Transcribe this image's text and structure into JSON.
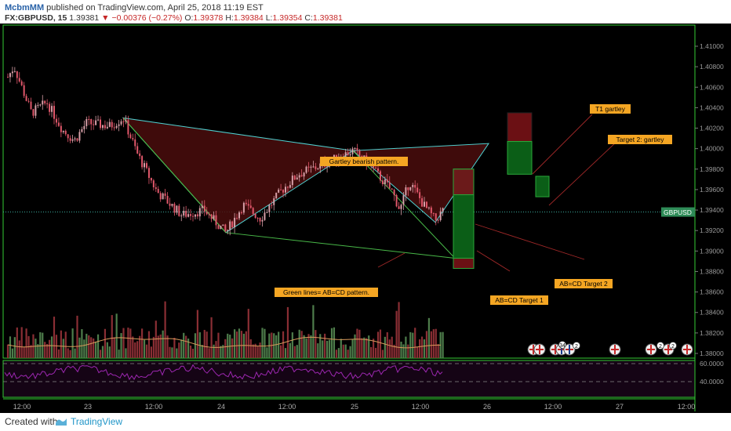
{
  "header": {
    "author": "McbmMM",
    "published_text": "published on TradingView.com, April 25, 2018 11:19 EST",
    "symbol": "FX:GBPUSD, 15",
    "last": "1.39381",
    "change": "−0.00376 (−0.27%)",
    "open_label": "O:",
    "open": "1.39378",
    "high_label": "H:",
    "high": "1.39384",
    "low_label": "L:",
    "low": "1.39354",
    "close_label": "C:",
    "close": "1.39381"
  },
  "price_badge": "GBPUSD",
  "annotations": {
    "t1": "T1 gartley",
    "target2": "Target 2: gartley",
    "bearish": "Gartley bearish pattern.",
    "green_lines": "Green lines= AB=CD pattern.",
    "abcd2": "AB=CD Target 2",
    "abcd1": "AB=CD Target 1"
  },
  "chart_data": {
    "type": "candlestick",
    "y_ticks": [
      "1.41000",
      "1.40800",
      "1.40600",
      "1.40400",
      "1.40200",
      "1.40000",
      "1.39800",
      "1.39600",
      "1.39400",
      "1.39200",
      "1.39000",
      "1.38800",
      "1.38600",
      "1.38400",
      "1.38200",
      "1.38000"
    ],
    "x_ticks": [
      "12:00",
      "23",
      "12:00",
      "24",
      "12:00",
      "25",
      "12:00",
      "26",
      "12:00",
      "27",
      "12:00"
    ],
    "rsi_ticks": [
      "60.0000",
      "40.0000"
    ],
    "current_price": 1.39381,
    "key_prices": [
      1.4082,
      1.3986,
      1.403,
      1.3918,
      1.3995,
      1.3928
    ],
    "gartley_pattern": [
      [
        1.403
      ],
      [
        1.3918
      ],
      [
        1.3998
      ],
      [
        1.3928
      ],
      [
        1.4005
      ]
    ],
    "abcd_pattern": [
      [
        1.403
      ],
      [
        1.3918
      ],
      [
        1.3893
      ]
    ],
    "targets": {
      "t1_gartley": [
        1.3975,
        1.4035
      ],
      "target2_gartley": [
        1.3953,
        1.3973
      ],
      "abcd_target1": [
        1.3883,
        1.398
      ],
      "abcd_target2": [
        1.3895,
        1.3958
      ]
    },
    "colors": {
      "up": "#d89fa8",
      "down": "#e0576a",
      "volume_up": "#4e7d4b",
      "volume_down": "#8a2e34",
      "grid_border": "#33cc33",
      "rsi": "#9c27b0",
      "ma": "#d89a5b",
      "triangle_fill": "#4a0d0d",
      "triangle_line": "#4fd0d0",
      "abcd_line": "#48b848"
    }
  }
}
